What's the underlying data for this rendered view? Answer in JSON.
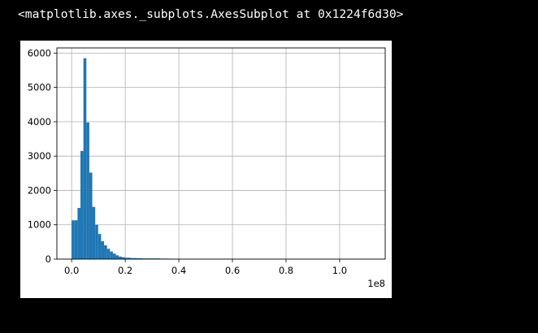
{
  "cell_output": {
    "repr_text": "<matplotlib.axes._subplots.AxesSubplot at 0x1224f6d30>"
  },
  "chart_data": {
    "type": "bar",
    "title": "",
    "xlabel": "",
    "ylabel": "",
    "x_offset_label": "1e8",
    "xlim": [
      -0.055,
      1.17
    ],
    "ylim": [
      0,
      6150
    ],
    "x_ticks": [
      0.0,
      0.2,
      0.4,
      0.6,
      0.8,
      1.0
    ],
    "x_tick_labels": [
      "0.0",
      "0.2",
      "0.4",
      "0.6",
      "0.8",
      "1.0"
    ],
    "y_ticks": [
      0,
      1000,
      2000,
      3000,
      4000,
      5000,
      6000
    ],
    "y_tick_labels": [
      "0",
      "1000",
      "2000",
      "3000",
      "4000",
      "5000",
      "6000"
    ],
    "grid": true,
    "bar_color": "#1f77b4",
    "bin_edges": [
      0.0,
      0.011,
      0.022,
      0.033,
      0.044,
      0.055,
      0.066,
      0.077,
      0.088,
      0.099,
      0.11,
      0.121,
      0.132,
      0.143,
      0.154,
      0.165,
      0.176,
      0.187,
      0.198,
      0.209,
      0.22,
      0.231,
      0.242,
      0.253,
      0.264,
      0.275,
      0.286,
      0.297,
      0.308,
      0.319,
      0.33,
      0.341,
      0.352,
      0.363,
      0.374,
      0.385,
      0.396
    ],
    "counts": [
      1130,
      1130,
      1490,
      3150,
      5850,
      3980,
      2520,
      1520,
      1000,
      730,
      520,
      400,
      300,
      220,
      160,
      110,
      75,
      55,
      40,
      40,
      30,
      30,
      25,
      25,
      20,
      20,
      20,
      20,
      20,
      20,
      15,
      15,
      15,
      10,
      10,
      10
    ]
  }
}
